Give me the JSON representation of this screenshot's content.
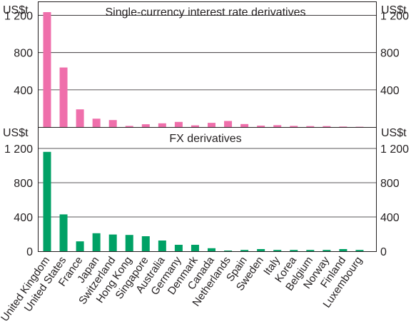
{
  "chart_data": [
    {
      "type": "bar",
      "title": "Single-currency interest rate derivatives",
      "unit_label": "US$t",
      "color": "#ef6fab",
      "ylim": [
        0,
        1350
      ],
      "yticks": [
        "0",
        "400",
        "800",
        "1 200"
      ],
      "ytick_values": [
        0,
        400,
        800,
        1200
      ],
      "categories": [
        "United Kingdom",
        "United States",
        "France",
        "Japan",
        "Switzerland",
        "Hong Kong",
        "Singapore",
        "Australia",
        "Germany",
        "Denmark",
        "Canada",
        "Netherlands",
        "Spain",
        "Sweden",
        "Italy",
        "Korea",
        "Belgium",
        "Norway",
        "Finland",
        "Luxembourg"
      ],
      "values": [
        1235,
        640,
        190,
        90,
        75,
        12,
        30,
        40,
        55,
        18,
        45,
        65,
        32,
        15,
        20,
        12,
        10,
        10,
        5,
        3
      ]
    },
    {
      "type": "bar",
      "title": "FX derivatives",
      "unit_label": "US$t",
      "color": "#00a165",
      "ylim": [
        0,
        1450
      ],
      "yticks": [
        "0",
        "400",
        "800",
        "1 200"
      ],
      "ytick_values": [
        0,
        400,
        800,
        1200
      ],
      "categories": [
        "United Kingdom",
        "United States",
        "France",
        "Japan",
        "Switzerland",
        "Hong Kong",
        "Singapore",
        "Australia",
        "Germany",
        "Denmark",
        "Canada",
        "Netherlands",
        "Spain",
        "Sweden",
        "Italy",
        "Korea",
        "Belgium",
        "Norway",
        "Finland",
        "Luxembourg"
      ],
      "values": [
        1160,
        430,
        115,
        210,
        195,
        190,
        175,
        125,
        75,
        75,
        35,
        8,
        15,
        25,
        15,
        15,
        15,
        15,
        25,
        15
      ]
    }
  ]
}
